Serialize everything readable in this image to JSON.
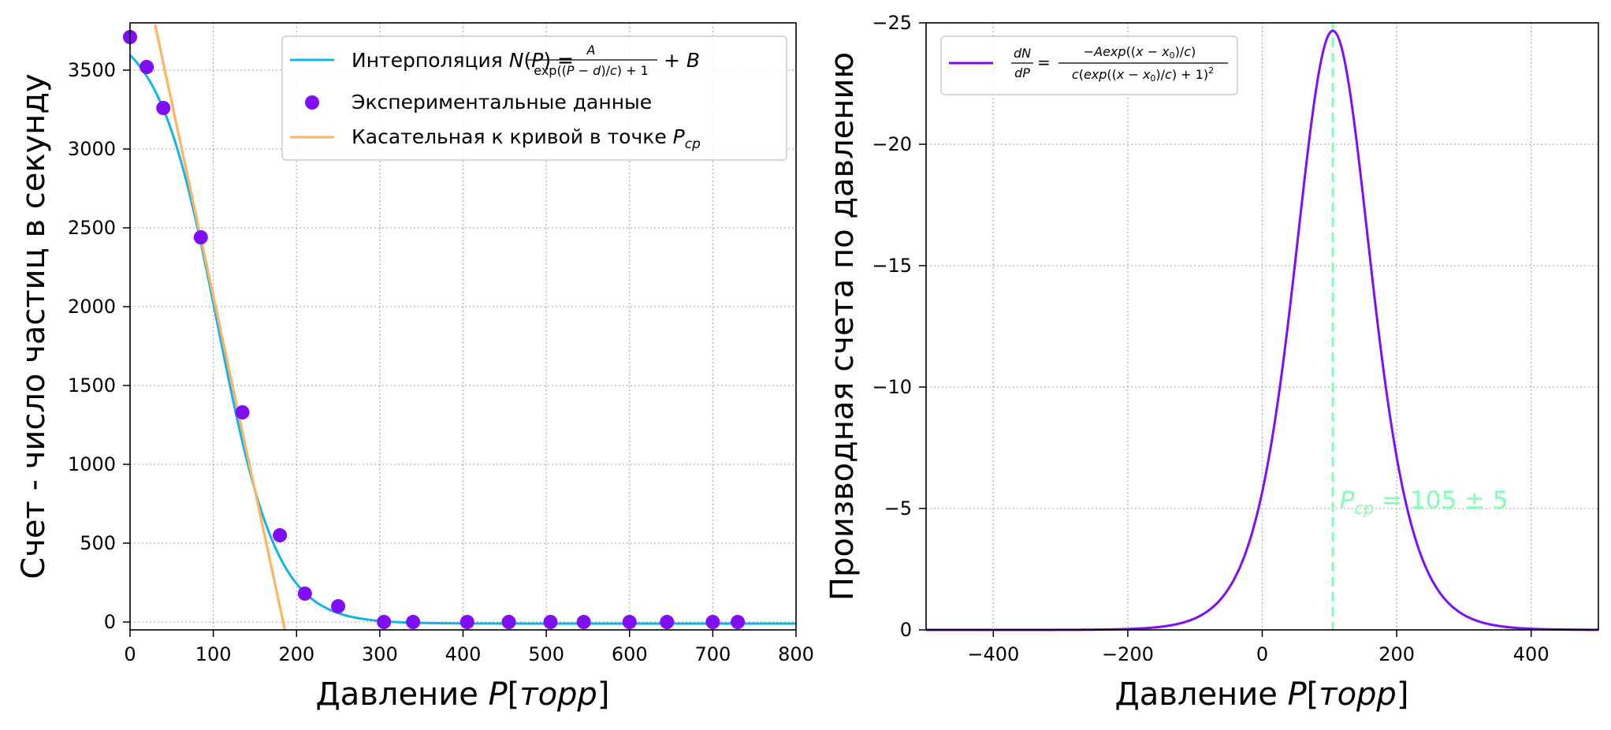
{
  "colors": {
    "fit": "#10b4e8",
    "points": "#7f0ef4",
    "tangent": "#ffb360",
    "derivative": "#7f0ef4",
    "marker": "#80ffb4",
    "grid": "#b0b0b0"
  },
  "chart_data": [
    {
      "type": "scatter",
      "xlabel": "Давление P[торр]",
      "ylabel": "Счет - число частиц в секунду",
      "xlim": [
        0,
        800
      ],
      "ylim": [
        -50,
        3800
      ],
      "xticks": [
        0,
        100,
        200,
        300,
        400,
        500,
        600,
        700,
        800
      ],
      "xtick_labels": [
        "0",
        "100",
        "200",
        "300",
        "400",
        "500",
        "600",
        "700",
        "800"
      ],
      "yticks": [
        0,
        500,
        1000,
        1500,
        2000,
        2500,
        3000,
        3500
      ],
      "ytick_labels": [
        "0",
        "500",
        "1000",
        "1500",
        "2000",
        "2500",
        "3000",
        "3500"
      ],
      "grid": true,
      "legend_position": "top-right",
      "legend": [
        {
          "label": "Интерполяция N(P) = A / (exp((P − d)/c) + 1) + B",
          "kind": "line"
        },
        {
          "label": "Экспериментальные данные",
          "kind": "scatter"
        },
        {
          "label": "Касательная к кривой в точке Pср",
          "kind": "line"
        }
      ],
      "series": [
        {
          "name": "Экспериментальные данные",
          "kind": "scatter",
          "x": [
            0,
            20,
            40,
            85,
            135,
            180,
            210,
            250,
            305,
            340,
            405,
            455,
            505,
            545,
            600,
            645,
            700,
            730
          ],
          "y": [
            3710,
            3520,
            3260,
            2440,
            1330,
            550,
            180,
            100,
            0,
            0,
            0,
            0,
            0,
            0,
            0,
            0,
            0,
            0
          ]
        },
        {
          "name": "Интерполяция",
          "kind": "fit",
          "params": {
            "A": 3800,
            "B": -10,
            "d": 105,
            "c": 36
          }
        },
        {
          "name": "Касательная к кривой в точке Pср",
          "kind": "line",
          "x": [
            30,
            186
          ],
          "y": [
            3790,
            -50
          ]
        }
      ]
    },
    {
      "type": "line",
      "xlabel": "Давление P[торр]",
      "ylabel": "Производная счета по давлению",
      "xlim": [
        -500,
        500
      ],
      "ylim": [
        0,
        -25
      ],
      "xticks": [
        -400,
        -200,
        0,
        200,
        400
      ],
      "xtick_labels": [
        "−400",
        "−200",
        "0",
        "200",
        "400"
      ],
      "yticks": [
        0,
        -5,
        -10,
        -15,
        -20,
        -25
      ],
      "ytick_labels": [
        "0",
        "−5",
        "−10",
        "−15",
        "−20",
        "−25"
      ],
      "grid": true,
      "legend_position": "top-left",
      "legend": [
        {
          "label": "dN/dP = −A exp((x − x0)/c) / (c (exp((x − x0)/c) + 1)²)",
          "kind": "line"
        }
      ],
      "series": [
        {
          "name": "dN/dP",
          "kind": "derivative",
          "params": {
            "A": 3800,
            "x0": 105,
            "c": 38.5
          }
        }
      ],
      "vline": {
        "x": 105
      },
      "annotation": {
        "text": "Pср = 105 ± 5",
        "x": 115,
        "y": -5
      }
    }
  ]
}
